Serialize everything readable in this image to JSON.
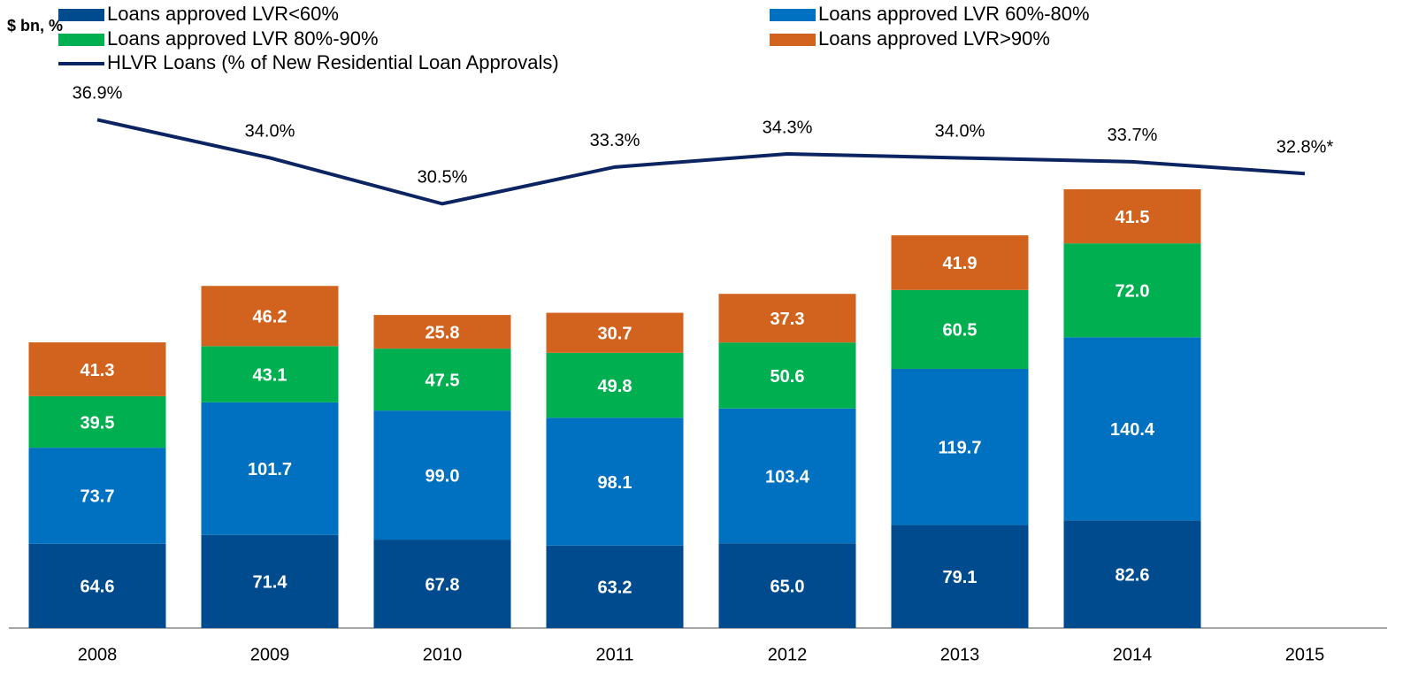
{
  "chart_data": {
    "type": "bar_line",
    "y_label": "$ bn, %",
    "categories": [
      "2008",
      "2009",
      "2010",
      "2011",
      "2012",
      "2013",
      "2014",
      "2015"
    ],
    "stacked": true,
    "series": [
      {
        "name": "Loans approved LVR<60%",
        "color": "#004b8d",
        "values": [
          64.6,
          71.4,
          67.8,
          63.2,
          65.0,
          79.1,
          82.6,
          null
        ],
        "value_labels": [
          "64.6",
          "71.4",
          "67.8",
          "63.2",
          "65.0",
          "79.1",
          "82.6",
          null
        ]
      },
      {
        "name": "Loans approved LVR 60%-80%",
        "color": "#0070c0",
        "values": [
          73.7,
          101.7,
          99.0,
          98.1,
          103.4,
          119.7,
          140.4,
          null
        ],
        "value_labels": [
          "73.7",
          "101.7",
          "99.0",
          "98.1",
          "103.4",
          "119.7",
          "140.4",
          null
        ]
      },
      {
        "name": "Loans approved LVR 80%-90%",
        "color": "#00b050",
        "values": [
          39.5,
          43.1,
          47.5,
          49.8,
          50.6,
          60.5,
          72.0,
          null
        ],
        "value_labels": [
          "39.5",
          "43.1",
          "47.5",
          "49.8",
          "50.6",
          "60.5",
          "72.0",
          null
        ]
      },
      {
        "name": "Loans approved LVR>90%",
        "color": "#d2631f",
        "values": [
          41.3,
          46.2,
          25.8,
          30.7,
          37.3,
          41.9,
          41.5,
          null
        ],
        "value_labels": [
          "41.3",
          "46.2",
          "25.8",
          "30.7",
          "37.3",
          "41.9",
          "41.5",
          null
        ]
      },
      {
        "name": "HLVR Loans (% of New Residential Loan Approvals)",
        "type": "line",
        "axis": "y2",
        "color": "#0c2461",
        "values": [
          36.9,
          34.0,
          30.5,
          33.3,
          34.3,
          34.0,
          33.7,
          32.8
        ],
        "value_labels": [
          "36.9%",
          "34.0%",
          "30.5%",
          "33.3%",
          "34.3%",
          "34.0%",
          "33.7%",
          "32.8%*"
        ]
      }
    ]
  }
}
